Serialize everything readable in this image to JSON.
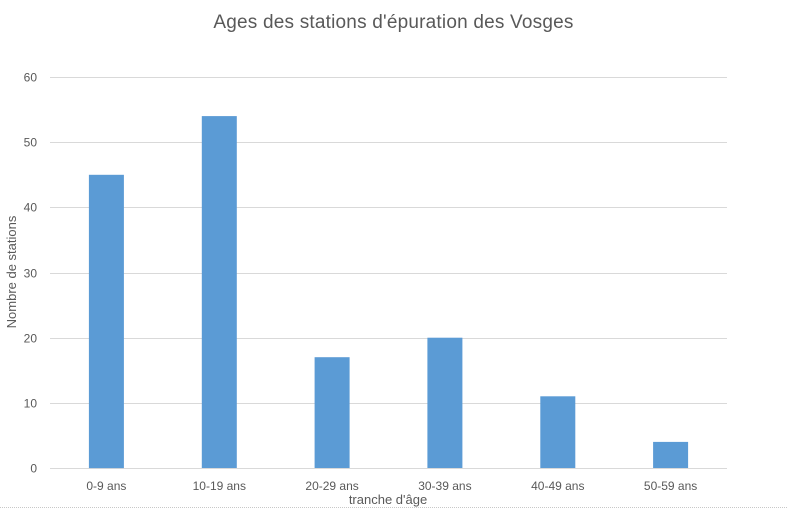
{
  "chart_data": {
    "type": "bar",
    "title": "Ages des stations d'épuration des Vosges",
    "xlabel": "tranche d'âge",
    "ylabel": "Nombre de stations",
    "categories": [
      "0-9 ans",
      "10-19 ans",
      "20-29 ans",
      "30-39 ans",
      "40-49 ans",
      "50-59 ans"
    ],
    "values": [
      45,
      54,
      17,
      20,
      11,
      4
    ],
    "ylim": [
      0,
      60
    ],
    "yticks": [
      0,
      10,
      20,
      30,
      40,
      50,
      60
    ],
    "grid": true,
    "legend": "none",
    "bar_color": "#5B9BD5",
    "grid_color": "#D9D9D9",
    "text_color": "#595959"
  }
}
